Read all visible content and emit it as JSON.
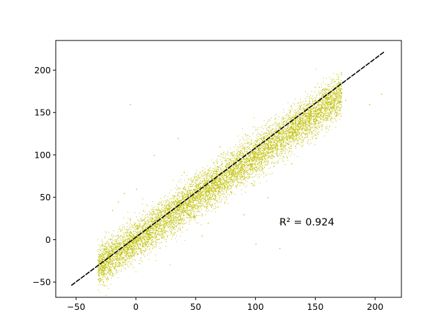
{
  "chart_data": {
    "type": "scatter",
    "title": "",
    "xlabel": "",
    "ylabel": "",
    "xlim": [
      -67,
      222
    ],
    "ylim": [
      -68,
      235
    ],
    "x_ticks": [
      -50,
      0,
      50,
      100,
      150,
      200
    ],
    "y_ticks": [
      -50,
      0,
      50,
      100,
      150,
      200
    ],
    "x_tick_labels": [
      "−50",
      "0",
      "50",
      "100",
      "150",
      "200"
    ],
    "y_tick_labels": [
      "−50",
      "0",
      "50",
      "100",
      "150",
      "200"
    ],
    "grid": false,
    "legend": "none",
    "series": [
      {
        "kind": "scatter",
        "color": "#bfbf00",
        "marker": "pixel",
        "density_band": {
          "x_range": [
            -32,
            172
          ],
          "trend": [
            0,
            1
          ],
          "spread_sd": 12
        },
        "points": [
          [
            -32,
            -32
          ],
          [
            -25,
            -25
          ],
          [
            -20,
            -12
          ],
          [
            -10,
            -5
          ],
          [
            0,
            3
          ],
          [
            10,
            12
          ],
          [
            20,
            18
          ],
          [
            30,
            35
          ],
          [
            40,
            38
          ],
          [
            50,
            52
          ],
          [
            60,
            57
          ],
          [
            70,
            73
          ],
          [
            80,
            78
          ],
          [
            90,
            92
          ],
          [
            100,
            97
          ],
          [
            110,
            112
          ],
          [
            120,
            118
          ],
          [
            130,
            133
          ],
          [
            140,
            138
          ],
          [
            150,
            152
          ],
          [
            160,
            160
          ],
          [
            170,
            163
          ],
          [
            -5,
            25
          ],
          [
            -15,
            5
          ],
          [
            -15,
            45
          ],
          [
            0,
            60
          ],
          [
            15,
            100
          ],
          [
            -10,
            55
          ],
          [
            60,
            20
          ],
          [
            90,
            30
          ],
          [
            110,
            50
          ],
          [
            130,
            90
          ],
          [
            150,
            120
          ],
          [
            100,
            130
          ],
          [
            70,
            110
          ],
          [
            40,
            80
          ],
          [
            -20,
            35
          ],
          [
            175,
            165
          ],
          [
            195,
            160
          ],
          [
            205,
            172
          ],
          [
            100,
            -5
          ],
          [
            120,
            -10
          ],
          [
            55,
            5
          ],
          [
            120,
            20
          ],
          [
            -5,
            160
          ],
          [
            35,
            120
          ]
        ]
      },
      {
        "kind": "line",
        "color": "#000000",
        "style": "dashed",
        "points": [
          [
            -54,
            -54
          ],
          [
            208,
            222
          ]
        ]
      }
    ],
    "annotations": [
      {
        "text": "R² = 0.924",
        "x": 120,
        "y": 17
      }
    ]
  }
}
